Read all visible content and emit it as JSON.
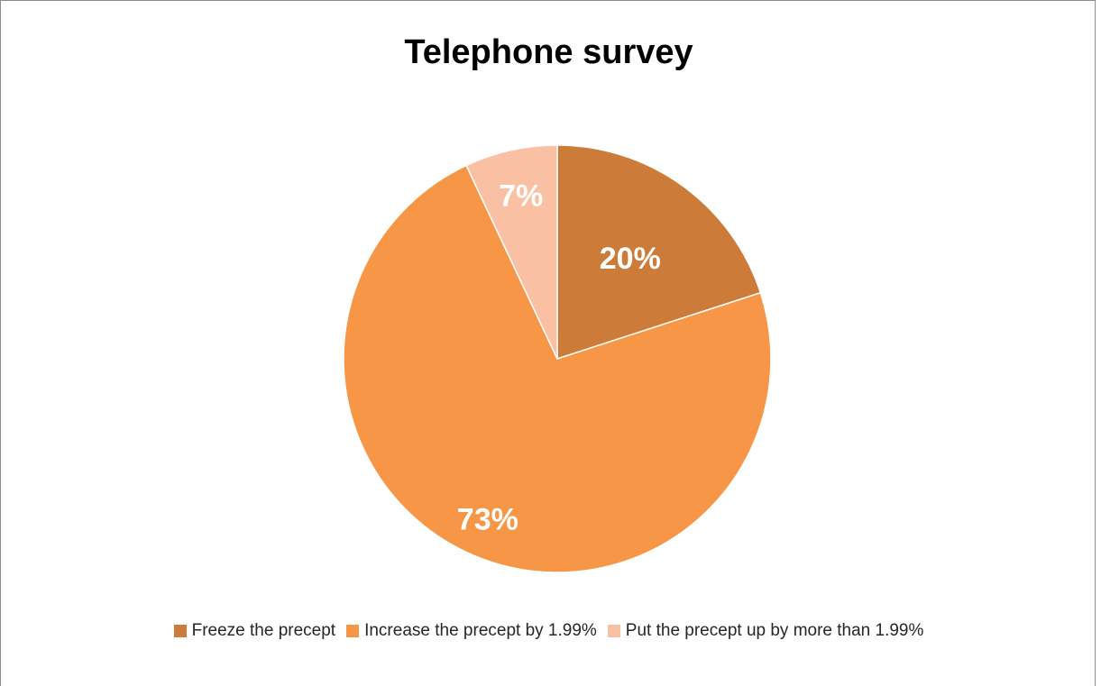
{
  "chart_data": {
    "type": "pie",
    "title": "Telephone survey",
    "categories": [
      "Freeze the precept",
      "Increase the precept by 1.99%",
      "Put the precept up by more than 1.99%"
    ],
    "values": [
      20,
      73,
      7
    ],
    "labels": [
      "20%",
      "73%",
      "7%"
    ],
    "colors": [
      "#cd7b38",
      "#f79646",
      "#fac0a3"
    ],
    "legend_position": "bottom"
  }
}
